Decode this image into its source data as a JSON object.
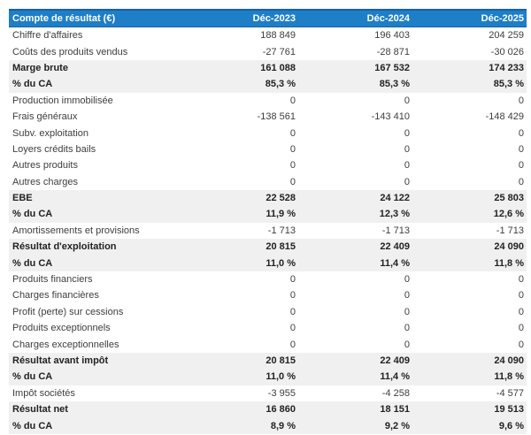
{
  "table": {
    "header": {
      "label": "Compte de résultat (€)",
      "columns": [
        "Déc-2023",
        "Déc-2024",
        "Déc-2025"
      ]
    },
    "rows": [
      {
        "label": "Chiffre d'affaires",
        "values": [
          "188 849",
          "196 403",
          "204 259"
        ],
        "style": "normal"
      },
      {
        "label": "Coûts des produits vendus",
        "values": [
          "-27 761",
          "-28 871",
          "-30 026"
        ],
        "style": "normal"
      },
      {
        "label": "Marge brute",
        "values": [
          "161 088",
          "167 532",
          "174 233"
        ],
        "style": "summary"
      },
      {
        "label": "% du CA",
        "values": [
          "85,3 %",
          "85,3 %",
          "85,3 %"
        ],
        "style": "summary"
      },
      {
        "label": "Production immobilisée",
        "values": [
          "0",
          "0",
          "0"
        ],
        "style": "normal"
      },
      {
        "label": "Frais généraux",
        "values": [
          "-138 561",
          "-143 410",
          "-148 429"
        ],
        "style": "normal"
      },
      {
        "label": "Subv. exploitation",
        "values": [
          "0",
          "0",
          "0"
        ],
        "style": "normal"
      },
      {
        "label": "Loyers crédits bails",
        "values": [
          "0",
          "0",
          "0"
        ],
        "style": "normal"
      },
      {
        "label": "Autres produits",
        "values": [
          "0",
          "0",
          "0"
        ],
        "style": "normal"
      },
      {
        "label": "Autres charges",
        "values": [
          "0",
          "0",
          "0"
        ],
        "style": "normal"
      },
      {
        "label": "EBE",
        "values": [
          "22 528",
          "24 122",
          "25 803"
        ],
        "style": "summary"
      },
      {
        "label": "% du CA",
        "values": [
          "11,9 %",
          "12,3 %",
          "12,6 %"
        ],
        "style": "summary"
      },
      {
        "label": "Amortissements et provisions",
        "values": [
          "-1 713",
          "-1 713",
          "-1 713"
        ],
        "style": "normal"
      },
      {
        "label": "Résultat d'exploitation",
        "values": [
          "20 815",
          "22 409",
          "24 090"
        ],
        "style": "summary"
      },
      {
        "label": "% du CA",
        "values": [
          "11,0 %",
          "11,4 %",
          "11,8 %"
        ],
        "style": "summary"
      },
      {
        "label": "Produits financiers",
        "values": [
          "0",
          "0",
          "0"
        ],
        "style": "normal"
      },
      {
        "label": "Charges financières",
        "values": [
          "0",
          "0",
          "0"
        ],
        "style": "normal"
      },
      {
        "label": "Profit (perte) sur cessions",
        "values": [
          "0",
          "0",
          "0"
        ],
        "style": "normal"
      },
      {
        "label": "Produits exceptionnels",
        "values": [
          "0",
          "0",
          "0"
        ],
        "style": "normal"
      },
      {
        "label": "Charges exceptionnelles",
        "values": [
          "0",
          "0",
          "0"
        ],
        "style": "normal"
      },
      {
        "label": "Résultat avant impôt",
        "values": [
          "20 815",
          "22 409",
          "24 090"
        ],
        "style": "summary"
      },
      {
        "label": "% du CA",
        "values": [
          "11,0 %",
          "11,4 %",
          "11,8 %"
        ],
        "style": "summary"
      },
      {
        "label": "Impôt sociétés",
        "values": [
          "-3 955",
          "-4 258",
          "-4 577"
        ],
        "style": "normal"
      },
      {
        "label": "Résultat net",
        "values": [
          "16 860",
          "18 151",
          "19 513"
        ],
        "style": "summary"
      },
      {
        "label": "% du CA",
        "values": [
          "8,9 %",
          "9,2 %",
          "9,6 %"
        ],
        "style": "summary"
      }
    ]
  },
  "colors": {
    "header_bg": "#1e7ec7",
    "header_border": "#1563a4",
    "summary_bg": "#f0f0f0",
    "text_normal": "#3d3d3d",
    "text_strong": "#222222"
  }
}
